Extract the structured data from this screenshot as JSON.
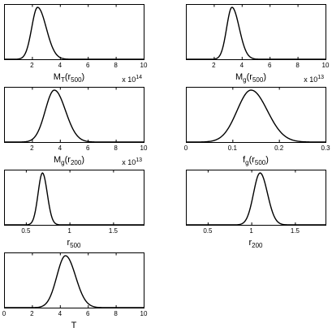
{
  "chart_data": [
    {
      "type": "line",
      "xlabel": "M",
      "xlabel_sub": "T",
      "xlabel_arg": "(r",
      "xlabel_arg_sub": "500",
      "xlabel_close": ")",
      "multiplier": "x 10",
      "multiplier_exp": "14",
      "xlim": [
        0,
        10
      ],
      "ylim": [
        0,
        1
      ],
      "xticks": [
        2,
        4,
        6,
        8,
        10
      ],
      "xticklabels": [
        "2",
        "4",
        "6",
        "8",
        "10"
      ],
      "grid": false,
      "curve": {
        "mean": 2.4,
        "sd_left": 0.42,
        "sd_right": 0.62
      }
    },
    {
      "type": "line",
      "xlabel": "M",
      "xlabel_sub": "g",
      "xlabel_arg": "(r",
      "xlabel_arg_sub": "500",
      "xlabel_close": ")",
      "multiplier": "x 10",
      "multiplier_exp": "13",
      "xlim": [
        0,
        10
      ],
      "ylim": [
        0,
        1
      ],
      "xticks": [
        2,
        4,
        6,
        8,
        10
      ],
      "xticklabels": [
        "2",
        "4",
        "6",
        "8",
        "10"
      ],
      "grid": false,
      "curve": {
        "mean": 3.3,
        "sd_left": 0.38,
        "sd_right": 0.52
      }
    },
    {
      "type": "line",
      "xlabel": "M",
      "xlabel_sub": "g",
      "xlabel_arg": "(r",
      "xlabel_arg_sub": "200",
      "xlabel_close": ")",
      "multiplier": "x 10",
      "multiplier_exp": "13",
      "xlim": [
        0,
        10
      ],
      "ylim": [
        0,
        1
      ],
      "xticks": [
        2,
        4,
        6,
        8,
        10
      ],
      "xticklabels": [
        "2",
        "4",
        "6",
        "8",
        "10"
      ],
      "grid": false,
      "curve": {
        "mean": 3.6,
        "sd_left": 0.65,
        "sd_right": 0.8
      }
    },
    {
      "type": "line",
      "xlabel": "f",
      "xlabel_sub": "g",
      "xlabel_arg": "(r",
      "xlabel_arg_sub": "500",
      "xlabel_close": ")",
      "multiplier": "",
      "multiplier_exp": "",
      "xlim": [
        0,
        0.3
      ],
      "ylim": [
        0,
        1
      ],
      "xticks": [
        0,
        0.1,
        0.2,
        0.3
      ],
      "xticklabels": [
        "0",
        "0.1",
        "0.2",
        "0.3"
      ],
      "grid": false,
      "curve": {
        "mean": 0.14,
        "sd_left": 0.03,
        "sd_right": 0.035
      }
    },
    {
      "type": "line",
      "xlabel": "r",
      "xlabel_sub": "500",
      "xlabel_arg": "",
      "xlabel_arg_sub": "",
      "xlabel_close": "",
      "multiplier": "",
      "multiplier_exp": "",
      "xlim": [
        0.25,
        1.85
      ],
      "ylim": [
        0,
        1
      ],
      "xticks": [
        0.5,
        1,
        1.5
      ],
      "xticklabels": [
        "0.5",
        "1",
        "1.5"
      ],
      "grid": false,
      "curve": {
        "mean": 0.69,
        "sd_left": 0.05,
        "sd_right": 0.055
      }
    },
    {
      "type": "line",
      "xlabel": "r",
      "xlabel_sub": "200",
      "xlabel_arg": "",
      "xlabel_arg_sub": "",
      "xlabel_close": "",
      "multiplier": "",
      "multiplier_exp": "",
      "xlim": [
        0.25,
        1.85
      ],
      "ylim": [
        0,
        1
      ],
      "xticks": [
        0.5,
        1,
        1.5
      ],
      "xticklabels": [
        "0.5",
        "1",
        "1.5"
      ],
      "grid": false,
      "curve": {
        "mean": 1.1,
        "sd_left": 0.075,
        "sd_right": 0.085
      }
    },
    {
      "type": "line",
      "xlabel": "T",
      "xlabel_sub": "",
      "xlabel_arg": "",
      "xlabel_arg_sub": "",
      "xlabel_close": "",
      "multiplier": "",
      "multiplier_exp": "",
      "xlim": [
        0,
        10
      ],
      "ylim": [
        0,
        1
      ],
      "xticks": [
        0,
        2,
        4,
        6,
        8,
        10
      ],
      "xticklabels": [
        "0",
        "2",
        "4",
        "6",
        "8",
        "10"
      ],
      "grid": false,
      "curve": {
        "mean": 4.4,
        "sd_left": 0.62,
        "sd_right": 0.72
      }
    }
  ]
}
